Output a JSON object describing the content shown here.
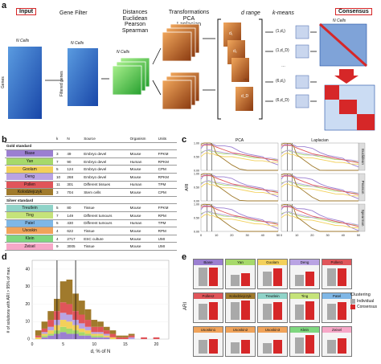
{
  "panel_a": {
    "letter": "a",
    "input_label": "Input",
    "gene_filter": "Gene Filter",
    "distances_title": "Distances",
    "distances": [
      "Euclidean",
      "Pearson",
      "Spearman"
    ],
    "transformations_title": "Transformations",
    "transformations": [
      "PCA",
      "Laplacian"
    ],
    "d_range": "d range",
    "kmeans": "k-means",
    "consensus_label": "Consensus",
    "n_cells": "N Cells",
    "genes": "Genes",
    "filtered_genes": "Filtered genes",
    "d_labels": [
      "d₁",
      "d₂",
      "…",
      "d_D"
    ],
    "pairs": [
      "(1,d₁)",
      "(1,d_D)",
      "…",
      "(6,d₁)",
      "(6,d_D)"
    ],
    "colors": {
      "blue": "#1f63c7",
      "green": "#3cbf3c",
      "orange": "#d36b1b"
    }
  },
  "panel_b": {
    "letter": "b",
    "headers": [
      "k",
      "N",
      "Source",
      "Organism",
      "Units"
    ],
    "gold_title": "Gold standard",
    "silver_title": "Silver standard",
    "gold": [
      {
        "name": "Biase",
        "color": "#9b7fd1",
        "k": "3",
        "N": "49",
        "source": "Embryo devel",
        "organism": "Mouse",
        "units": "FPKM"
      },
      {
        "name": "Yan",
        "color": "#a6d96a",
        "k": "7",
        "N": "90",
        "source": "Embryo devel",
        "organism": "Human",
        "units": "RPKM"
      },
      {
        "name": "Goolam",
        "color": "#f3d05a",
        "k": "5",
        "N": "124",
        "source": "Embryo devel",
        "organism": "Mouse",
        "units": "CPM"
      },
      {
        "name": "Deng",
        "color": "#b9a3e3",
        "k": "10",
        "N": "268",
        "source": "Embryo devel",
        "organism": "Mouse",
        "units": "RPKM"
      },
      {
        "name": "Pollen",
        "color": "#e0555a",
        "k": "11",
        "N": "301",
        "source": "Different tissues",
        "organism": "Human",
        "units": "TPM"
      },
      {
        "name": "Kolodziejczyk",
        "color": "#a07a2c",
        "k": "3",
        "N": "704",
        "source": "Stem cells",
        "organism": "Mouse",
        "units": "CPM"
      }
    ],
    "silver": [
      {
        "name": "Treutlein",
        "color": "#8fd3c8",
        "k": "5",
        "N": "80",
        "source": "Tissue",
        "organism": "Mouse",
        "units": "FPKM"
      },
      {
        "name": "Ting",
        "color": "#c5e37a",
        "k": "7",
        "N": "149",
        "source": "Different tumours",
        "organism": "Mouse",
        "units": "RPM"
      },
      {
        "name": "Patel",
        "color": "#7fb7e6",
        "k": "5",
        "N": "430",
        "source": "Different tumours",
        "organism": "Human",
        "units": "TPM"
      },
      {
        "name": "Usoskin",
        "color": "#f0a35a",
        "k": "4",
        "N": "622",
        "source": "Tissue",
        "organism": "Mouse",
        "units": "RPM"
      },
      {
        "name": "Klein",
        "color": "#7fd77f",
        "k": "4",
        "N": "2717",
        "source": "ESC culture",
        "organism": "Mouse",
        "units": "UMI"
      },
      {
        "name": "Zeisel",
        "color": "#f7a8c8",
        "k": "9",
        "N": "3005",
        "source": "Tissue",
        "organism": "Mouse",
        "units": "UMI"
      }
    ]
  },
  "chart_data": [
    {
      "panel": "c",
      "type": "line",
      "facet_cols": [
        "PCA",
        "Laplacian"
      ],
      "facet_rows": [
        "Euclidean",
        "Pearson",
        "Spearman"
      ],
      "xlabel": "d, % of N",
      "ylabel": "ARI",
      "x_ticks": [
        "0",
        "10",
        "20",
        "30",
        "40",
        "50"
      ],
      "y_ticks": [
        "0.00",
        "0.25",
        "0.50",
        "0.75",
        "1.00"
      ],
      "xlim": [
        0,
        50
      ],
      "ylim": [
        0,
        1
      ],
      "vlines": [
        4,
        7
      ],
      "x": [
        0,
        2,
        4,
        6,
        8,
        10,
        15,
        20,
        25,
        30,
        35,
        40,
        45,
        50
      ],
      "series": [
        {
          "name": "Biase",
          "color": "#9b7fd1",
          "values": [
            0.8,
            0.95,
            0.95,
            0.95,
            0.95,
            0.9,
            0.9,
            0.85,
            0.7,
            0.6,
            0.55,
            0.5,
            0.3,
            0.2
          ]
        },
        {
          "name": "Yan",
          "color": "#a6d96a",
          "values": [
            0.65,
            0.7,
            0.75,
            0.7,
            0.7,
            0.65,
            0.6,
            0.6,
            0.55,
            0.5,
            0.45,
            0.45,
            0.4,
            0.4
          ]
        },
        {
          "name": "Goolam",
          "color": "#f3d05a",
          "values": [
            0.5,
            0.6,
            0.65,
            0.6,
            0.6,
            0.55,
            0.5,
            0.5,
            0.45,
            0.4,
            0.35,
            0.35,
            0.3,
            0.3
          ]
        },
        {
          "name": "Deng",
          "color": "#b9a3e3",
          "values": [
            0.6,
            0.7,
            0.75,
            0.75,
            0.7,
            0.7,
            0.65,
            0.6,
            0.6,
            0.55,
            0.5,
            0.45,
            0.45,
            0.4
          ]
        },
        {
          "name": "Pollen",
          "color": "#e0555a",
          "values": [
            0.9,
            0.92,
            0.93,
            0.93,
            0.9,
            0.85,
            0.75,
            0.65,
            0.6,
            0.55,
            0.5,
            0.45,
            0.4,
            0.35
          ]
        },
        {
          "name": "Kolodziejczyk",
          "color": "#a07a2c",
          "values": [
            0.95,
            1.0,
            1.0,
            1.0,
            0.9,
            0.6,
            0.4,
            0.2,
            0.05,
            0.0,
            0.0,
            0.0,
            0.0,
            0.0
          ]
        }
      ]
    },
    {
      "panel": "d",
      "type": "bar",
      "xlabel": "d, % of N",
      "ylabel": "# of solutions with ARI > 95% of max.",
      "x_ticks": [
        "0",
        "5",
        "10",
        "15",
        "20"
      ],
      "y_ticks": [
        "0",
        "10",
        "20",
        "30",
        "40"
      ],
      "xlim": [
        0,
        22
      ],
      "ylim": [
        0,
        45
      ],
      "vlines": [
        4,
        7
      ],
      "bins": [
        1,
        2,
        3,
        4,
        5,
        6,
        7,
        8,
        9,
        10,
        11,
        12,
        13,
        14,
        15,
        16,
        17,
        18,
        19,
        20,
        21
      ],
      "stacked_series": [
        {
          "name": "Biase",
          "color": "#9b7fd1",
          "values": [
            0,
            1,
            2,
            3,
            4,
            3,
            3,
            2,
            2,
            1,
            1,
            1,
            0,
            0,
            0,
            0,
            0,
            0,
            0,
            0,
            0
          ]
        },
        {
          "name": "Yan",
          "color": "#a6d96a",
          "values": [
            0,
            1,
            1,
            2,
            3,
            3,
            2,
            2,
            1,
            1,
            1,
            0,
            0,
            0,
            0,
            0,
            0,
            0,
            0,
            0,
            0
          ]
        },
        {
          "name": "Goolam",
          "color": "#f3d05a",
          "values": [
            1,
            1,
            2,
            3,
            4,
            4,
            3,
            2,
            2,
            1,
            1,
            1,
            1,
            0,
            0,
            0,
            0,
            0,
            0,
            0,
            0
          ]
        },
        {
          "name": "Deng",
          "color": "#b9a3e3",
          "values": [
            0,
            1,
            2,
            3,
            4,
            4,
            3,
            3,
            2,
            1,
            1,
            1,
            0,
            0,
            0,
            1,
            0,
            0,
            0,
            0,
            0
          ]
        },
        {
          "name": "Pollen",
          "color": "#e0555a",
          "values": [
            1,
            2,
            4,
            5,
            6,
            6,
            5,
            5,
            4,
            3,
            3,
            2,
            2,
            1,
            1,
            1,
            0,
            1,
            0,
            1,
            0
          ]
        },
        {
          "name": "Kolodziejczyk",
          "color": "#a07a2c",
          "values": [
            3,
            4,
            5,
            7,
            12,
            14,
            10,
            8,
            6,
            4,
            3,
            2,
            2,
            1,
            1,
            1,
            0,
            0,
            0,
            0,
            0
          ]
        }
      ]
    },
    {
      "panel": "e",
      "type": "bar",
      "ylabel": "ARI",
      "y_ticks": [
        "0.0",
        "0.5",
        "1.0"
      ],
      "ylim": [
        0,
        1
      ],
      "legend_title": "Clustering",
      "legend": [
        {
          "name": "Individual",
          "color": "#a9a9a9"
        },
        {
          "name": "Consensus",
          "color": "#d62728"
        }
      ],
      "panels": [
        {
          "name": "Biase",
          "color": "#9b7fd1",
          "individual": 0.95,
          "consensus": 0.95
        },
        {
          "name": "Yan",
          "color": "#a6d96a",
          "individual": 0.6,
          "consensus": 0.65
        },
        {
          "name": "Goolam",
          "color": "#f3d05a",
          "individual": 0.75,
          "consensus": 0.9
        },
        {
          "name": "Deng",
          "color": "#b9a3e3",
          "individual": 0.6,
          "consensus": 0.75
        },
        {
          "name": "Pollen1",
          "color": "#e0555a",
          "individual": 0.9,
          "consensus": 0.93
        },
        {
          "name": "Pollen2",
          "color": "#e0555a",
          "individual": 0.85,
          "consensus": 0.9
        },
        {
          "name": "Kolodziejczyk",
          "color": "#a07a2c",
          "individual": 0.9,
          "consensus": 1.0
        },
        {
          "name": "Treutlein",
          "color": "#8fd3c8",
          "individual": 0.85,
          "consensus": 0.9
        },
        {
          "name": "Ting",
          "color": "#c5e37a",
          "individual": 0.8,
          "consensus": 0.95
        },
        {
          "name": "Patel",
          "color": "#7fb7e6",
          "individual": 0.85,
          "consensus": 0.9
        },
        {
          "name": "Usoskin1",
          "color": "#f0a35a",
          "individual": 0.7,
          "consensus": 0.75
        },
        {
          "name": "Usoskin2",
          "color": "#f0a35a",
          "individual": 0.6,
          "consensus": 0.7
        },
        {
          "name": "Usoskin3",
          "color": "#f0a35a",
          "individual": 0.55,
          "consensus": 0.7
        },
        {
          "name": "Klein",
          "color": "#7fd77f",
          "individual": 0.85,
          "consensus": 0.95
        },
        {
          "name": "Zeisel",
          "color": "#f7a8c8",
          "individual": 0.7,
          "consensus": 0.8
        }
      ]
    }
  ]
}
